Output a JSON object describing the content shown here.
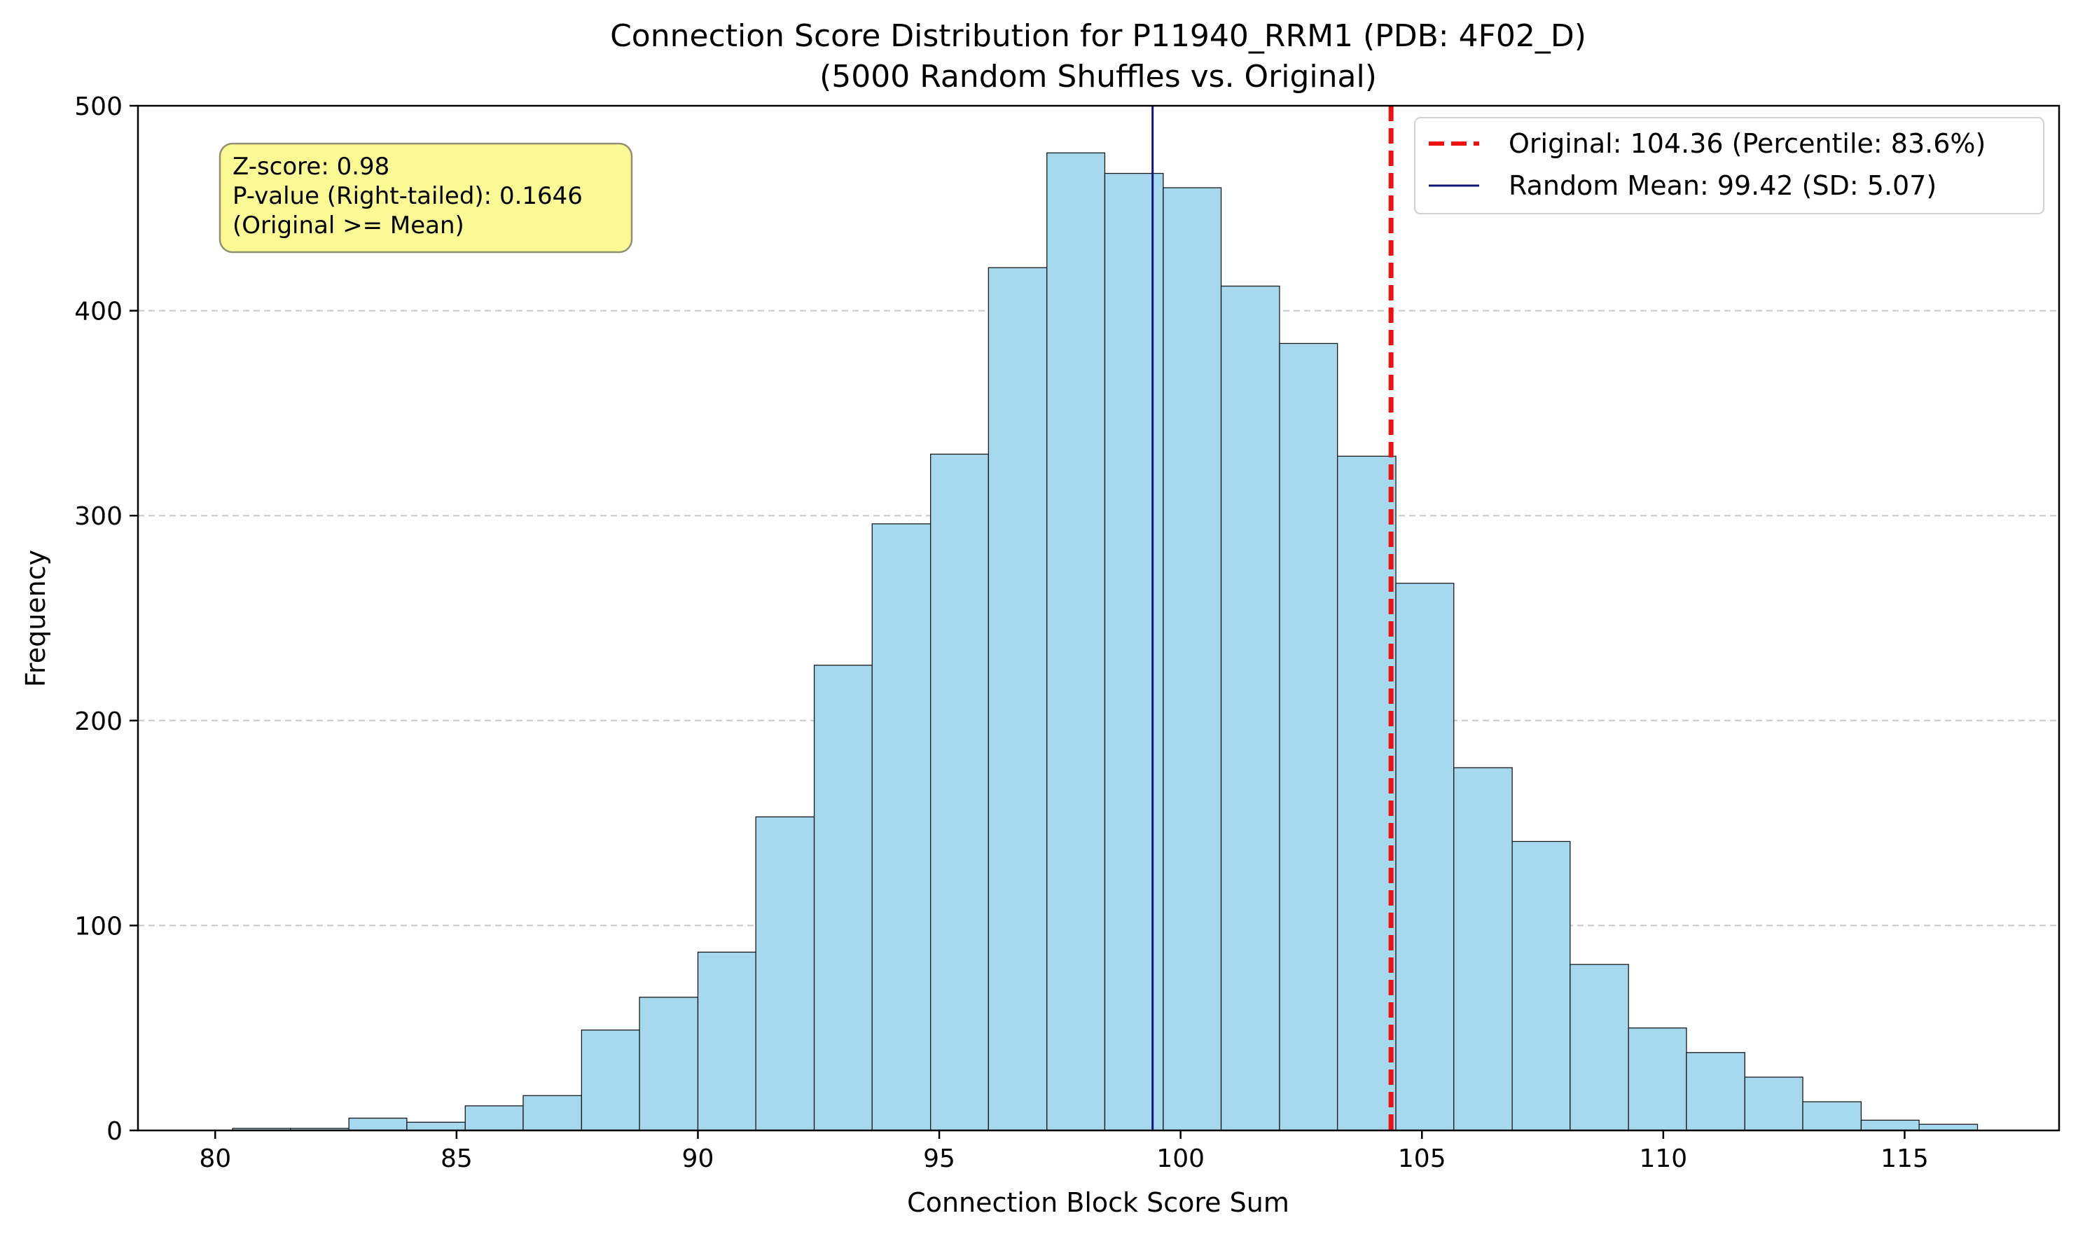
{
  "chart_data": {
    "type": "bar",
    "title": "Connection Score Distribution for P11940_RRM1 (PDB: 4F02_D)",
    "subtitle": "(5000 Random Shuffles vs. Original)",
    "xlabel": "Connection Block Score Sum",
    "ylabel": "Frequency",
    "xlim": [
      78.4,
      118.2
    ],
    "ylim": [
      0,
      500
    ],
    "xticks": [
      80,
      85,
      90,
      95,
      100,
      105,
      110,
      115
    ],
    "yticks": [
      0,
      100,
      200,
      300,
      400,
      500
    ],
    "grid": "y-dashed",
    "legend_position": "upper right",
    "bin_edges": [
      80.36,
      81.56,
      82.77,
      83.97,
      85.18,
      86.38,
      87.59,
      88.79,
      90.0,
      91.2,
      92.41,
      93.61,
      94.82,
      96.02,
      97.23,
      98.43,
      99.64,
      100.84,
      102.05,
      103.25,
      104.46,
      105.66,
      106.87,
      108.07,
      109.28,
      110.48,
      111.69,
      112.89,
      114.1,
      115.3,
      116.51
    ],
    "series": [
      {
        "name": "Random shuffles",
        "values": [
          1,
          1,
          6,
          4,
          12,
          17,
          49,
          65,
          87,
          153,
          227,
          296,
          330,
          421,
          477,
          467,
          460,
          412,
          384,
          329,
          267,
          177,
          141,
          81,
          50,
          38,
          26,
          14,
          5,
          3
        ],
        "color": "#a6d8ee"
      }
    ],
    "lines": [
      {
        "label": "Original: 104.36 (Percentile: 83.6%)",
        "x": 104.36,
        "color": "#ee1111",
        "style": "dashed"
      },
      {
        "label": "Random Mean: 99.42 (SD: 5.07)",
        "x": 99.42,
        "color": "#12127f",
        "style": "solid"
      }
    ],
    "annotation": {
      "lines": [
        "Z-score: 0.98",
        "P-value (Right-tailed): 0.1646",
        "(Original >= Mean)"
      ],
      "background": "#fbf98e"
    }
  }
}
